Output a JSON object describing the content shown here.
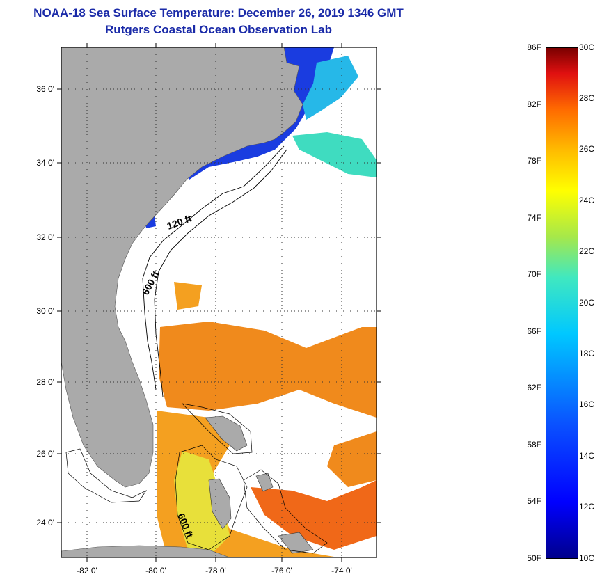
{
  "header": {
    "title": "NOAA-18 Sea Surface Temperature:  December 26, 2019 1346 GMT",
    "subtitle": "Rutgers Coastal Ocean Observation Lab"
  },
  "map": {
    "lat_labels": [
      "36 0'",
      "34 0'",
      "32 0'",
      "30 0'",
      "28 0'",
      "26 0'",
      "24 0'"
    ],
    "lon_labels": [
      "-82 0'",
      "-80 0'",
      "-78 0'",
      "-76 0'",
      "-74 0'"
    ],
    "isobaths": [
      "120 ft",
      "600 ft",
      "600 ft"
    ],
    "colors": {
      "land": "#aaaaaa",
      "ocean_cloud": "#ffffff",
      "cold_water": "#1a3ce0",
      "warm_water": "#f08a1c"
    }
  },
  "colorbar": {
    "fahrenheit": [
      "86F",
      "82F",
      "78F",
      "74F",
      "70F",
      "66F",
      "62F",
      "58F",
      "54F",
      "50F"
    ],
    "celsius": [
      "30C",
      "28C",
      "26C",
      "24C",
      "22C",
      "20C",
      "18C",
      "16C",
      "14C",
      "12C",
      "10C"
    ]
  }
}
